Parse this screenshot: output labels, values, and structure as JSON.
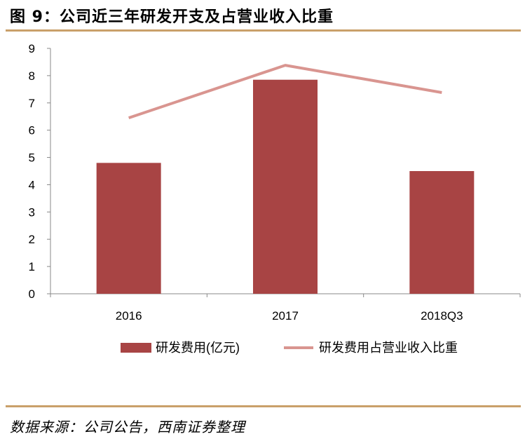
{
  "figure_title": "图 9：公司近三年研发开支及占营业收入比重",
  "source_note": "数据来源：公司公告，西南证券整理",
  "colors": {
    "bar": "#a84444",
    "line": "#d99590",
    "rule": "#c9a06a",
    "axis": "#888888"
  },
  "chart_data": {
    "type": "bar",
    "title": "公司近三年研发开支及占营业收入比重",
    "categories": [
      "2016",
      "2017",
      "2018Q3"
    ],
    "yticks": [
      "0",
      "1",
      "2",
      "3",
      "4",
      "5",
      "6",
      "7",
      "8",
      "9"
    ],
    "ylim": [
      0,
      9
    ],
    "grid": false,
    "legend_position": "bottom",
    "series": [
      {
        "name": "研发费用(亿元)",
        "type": "bar",
        "values": [
          4.8,
          7.85,
          4.5
        ]
      },
      {
        "name": "研发费用占营业收入比重",
        "type": "line",
        "values": [
          6.45,
          8.38,
          7.38
        ]
      }
    ]
  }
}
